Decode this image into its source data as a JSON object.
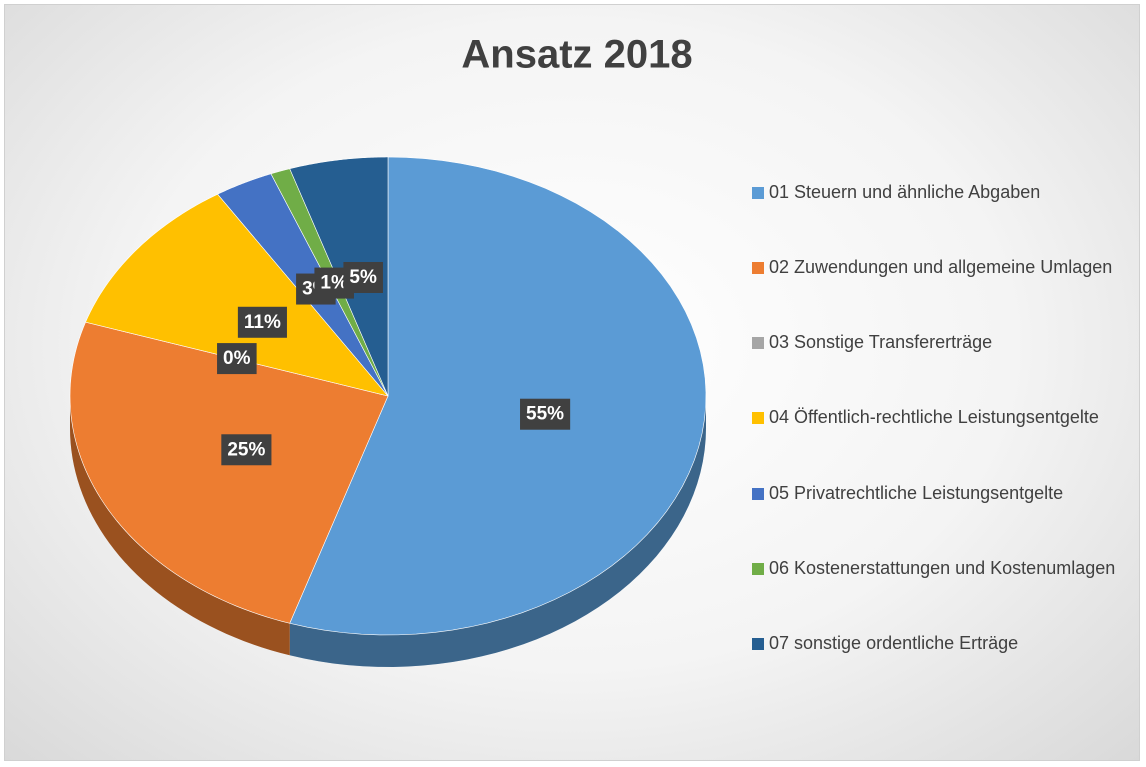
{
  "chart_data": {
    "type": "pie",
    "title": "Ansatz 2018",
    "categories": [
      "01 Steuern und ähnliche Abgaben",
      "02 Zuwendungen und allgemeine Umlagen",
      "03 Sonstige Transfererträge",
      "04 Öffentlich-rechtliche Leistungsentgelte",
      "05 Privatrechtliche Leistungsentgelte",
      "06 Kostenerstattungen und Kostenumlagen",
      "07 sonstige ordentliche Erträge"
    ],
    "values": [
      55,
      25,
      0,
      11,
      3,
      1,
      5
    ],
    "value_labels": [
      "55%",
      "25%",
      "0%",
      "11%",
      "3%",
      "1%",
      "5%"
    ],
    "colors": [
      "#5b9bd5",
      "#ed7d31",
      "#a5a5a5",
      "#ffc000",
      "#4472c4",
      "#70ad47",
      "#255e91"
    ],
    "legend": "right"
  }
}
